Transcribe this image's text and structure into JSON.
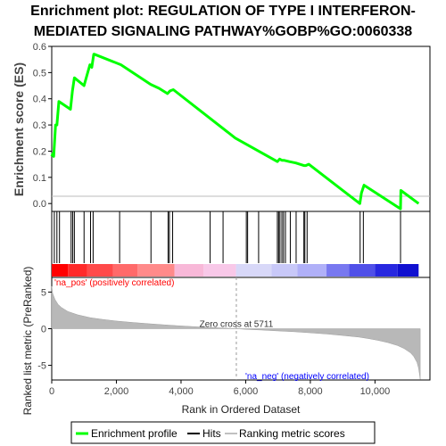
{
  "chart_data": {
    "type": "line",
    "title_line1": "Enrichment plot: REGULATION OF TYPE I INTERFERON-",
    "title_line2": "MEDIATED SIGNALING PATHWAY%GOBP%GO:0060338",
    "ylabel_top": "Enrichment score (ES)",
    "ylabel_bottom": "Ranked list metric (PreRanked)",
    "xlabel": "Rank in Ordered Dataset",
    "es_ylim": [
      -0.03,
      0.6
    ],
    "es_yticks": [
      0.0,
      0.1,
      0.2,
      0.3,
      0.4,
      0.5,
      0.6
    ],
    "es_ytick_labels": [
      "0.0",
      "0.1",
      "0.2",
      "0.3",
      "0.4",
      "0.5",
      "0.6"
    ],
    "xlim": [
      0,
      11700
    ],
    "xticks": [
      0,
      2000,
      4000,
      6000,
      8000,
      10000
    ],
    "xtick_labels": [
      "0",
      "2,000",
      "4,000",
      "6,000",
      "8,000",
      "10,000"
    ],
    "metric_ylim": [
      -7,
      7
    ],
    "metric_yticks": [
      -5,
      0,
      5
    ],
    "metric_ytick_labels": [
      "-5",
      "0",
      "5"
    ],
    "es_color": "#00ff00",
    "es_x": [
      0,
      30,
      60,
      120,
      160,
      220,
      580,
      640,
      700,
      1000,
      1180,
      1240,
      1300,
      1320,
      2140,
      3060,
      3320,
      3580,
      3660,
      3760,
      5680,
      6980,
      7050,
      7120,
      7180,
      7350,
      7550,
      7800,
      7860,
      7950,
      9530,
      9580,
      9660,
      10790,
      10800,
      11350
    ],
    "es_y": [
      0.18,
      0.19,
      0.18,
      0.3,
      0.3,
      0.39,
      0.36,
      0.43,
      0.48,
      0.45,
      0.53,
      0.52,
      0.57,
      0.57,
      0.53,
      0.455,
      0.44,
      0.42,
      0.43,
      0.435,
      0.25,
      0.16,
      0.17,
      0.165,
      0.165,
      0.16,
      0.155,
      0.145,
      0.145,
      0.15,
      0.0,
      0.04,
      0.07,
      -0.02,
      0.05,
      0.0
    ],
    "hits": [
      80,
      160,
      240,
      600,
      650,
      700,
      1000,
      1200,
      1280,
      2100,
      3070,
      3600,
      3640,
      3740,
      4900,
      5300,
      6020,
      6060,
      6400,
      6980,
      7020,
      7060,
      7120,
      7170,
      7230,
      7380,
      7560,
      7800,
      7830,
      7900,
      9540,
      9640,
      10790
    ],
    "metric_curve": {
      "x": [
        0,
        30,
        100,
        200,
        300,
        500,
        800,
        1200,
        1600,
        2000,
        2500,
        3000,
        3500,
        4000,
        4500,
        5000,
        5400,
        5711,
        6000,
        6500,
        7000,
        7500,
        8000,
        8500,
        9000,
        9500,
        9800,
        10100,
        10400,
        10700,
        10900,
        11100,
        11200,
        11300,
        11350,
        11400
      ],
      "y": [
        5.8,
        4.8,
        4.0,
        3.3,
        2.9,
        2.35,
        1.9,
        1.5,
        1.25,
        1.05,
        0.85,
        0.68,
        0.52,
        0.38,
        0.26,
        0.15,
        0.07,
        0.0,
        -0.08,
        -0.18,
        -0.3,
        -0.42,
        -0.56,
        -0.72,
        -0.92,
        -1.15,
        -1.35,
        -1.6,
        -1.9,
        -2.3,
        -2.7,
        -3.3,
        -3.8,
        -4.6,
        -5.4,
        -6.9
      ]
    },
    "zero_cross_x": 5711,
    "zero_cross_label": "Zero cross at 5711",
    "pos_label": "'na_pos' (positively correlated)",
    "neg_label": "'na_neg' (negatively correlated)",
    "pos_label_color": "#ff0000",
    "neg_label_color": "#0000ff",
    "heatmap_segments": [
      {
        "x0": 0,
        "x1": 500,
        "color": "#ff0000"
      },
      {
        "x0": 500,
        "x1": 1100,
        "color": "#ff2a2a"
      },
      {
        "x0": 1100,
        "x1": 1900,
        "color": "#ff4a4a"
      },
      {
        "x0": 1900,
        "x1": 2650,
        "color": "#ff6a6a"
      },
      {
        "x0": 2650,
        "x1": 3800,
        "color": "#ff8a8a"
      },
      {
        "x0": 3800,
        "x1": 4700,
        "color": "#f8b8d8"
      },
      {
        "x0": 4700,
        "x1": 5700,
        "color": "#f8c8e8"
      },
      {
        "x0": 5700,
        "x1": 6800,
        "color": "#d8d8f8"
      },
      {
        "x0": 6800,
        "x1": 7600,
        "color": "#c8c8f8"
      },
      {
        "x0": 7600,
        "x1": 8500,
        "color": "#b0b0f8"
      },
      {
        "x0": 8500,
        "x1": 9200,
        "color": "#7878f0"
      },
      {
        "x0": 9200,
        "x1": 10000,
        "color": "#5050e8"
      },
      {
        "x0": 10000,
        "x1": 10700,
        "color": "#2828e0"
      },
      {
        "x0": 10700,
        "x1": 11350,
        "color": "#1010d0"
      }
    ],
    "legend": [
      {
        "label": "Enrichment profile",
        "color": "#00ff00"
      },
      {
        "label": "Hits",
        "color": "#000000"
      },
      {
        "label": "Ranking metric scores",
        "color": "#c0c0c0"
      }
    ]
  }
}
